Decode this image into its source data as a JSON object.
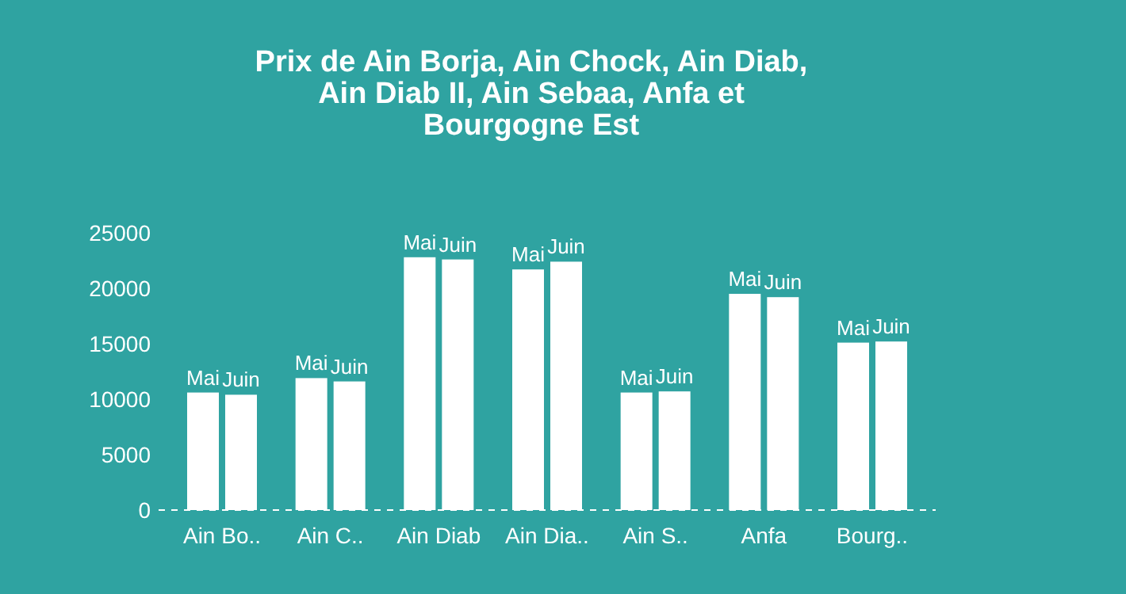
{
  "chart_data": {
    "type": "bar",
    "title": "Prix de Ain Borja, Ain Chock, Ain Diab, Ain Diab II, Ain Sebaa, Anfa et Bourgogne Est",
    "categories": [
      "Ain Bo..",
      "Ain C..",
      "Ain Diab",
      "Ain Dia..",
      "Ain S..",
      "Anfa",
      "Bourg.."
    ],
    "series": [
      {
        "name": "Mai",
        "color": "#ffffff",
        "values": [
          10600,
          11900,
          22800,
          21700,
          10600,
          19500,
          15100
        ]
      },
      {
        "name": "Juin",
        "color": "#ffffff",
        "values": [
          10400,
          11600,
          22600,
          22400,
          10700,
          19200,
          15200
        ]
      }
    ],
    "ylim": [
      0,
      25000
    ],
    "yticks": [
      0,
      5000,
      10000,
      15000,
      20000,
      25000
    ],
    "grid": false,
    "legend": false
  }
}
